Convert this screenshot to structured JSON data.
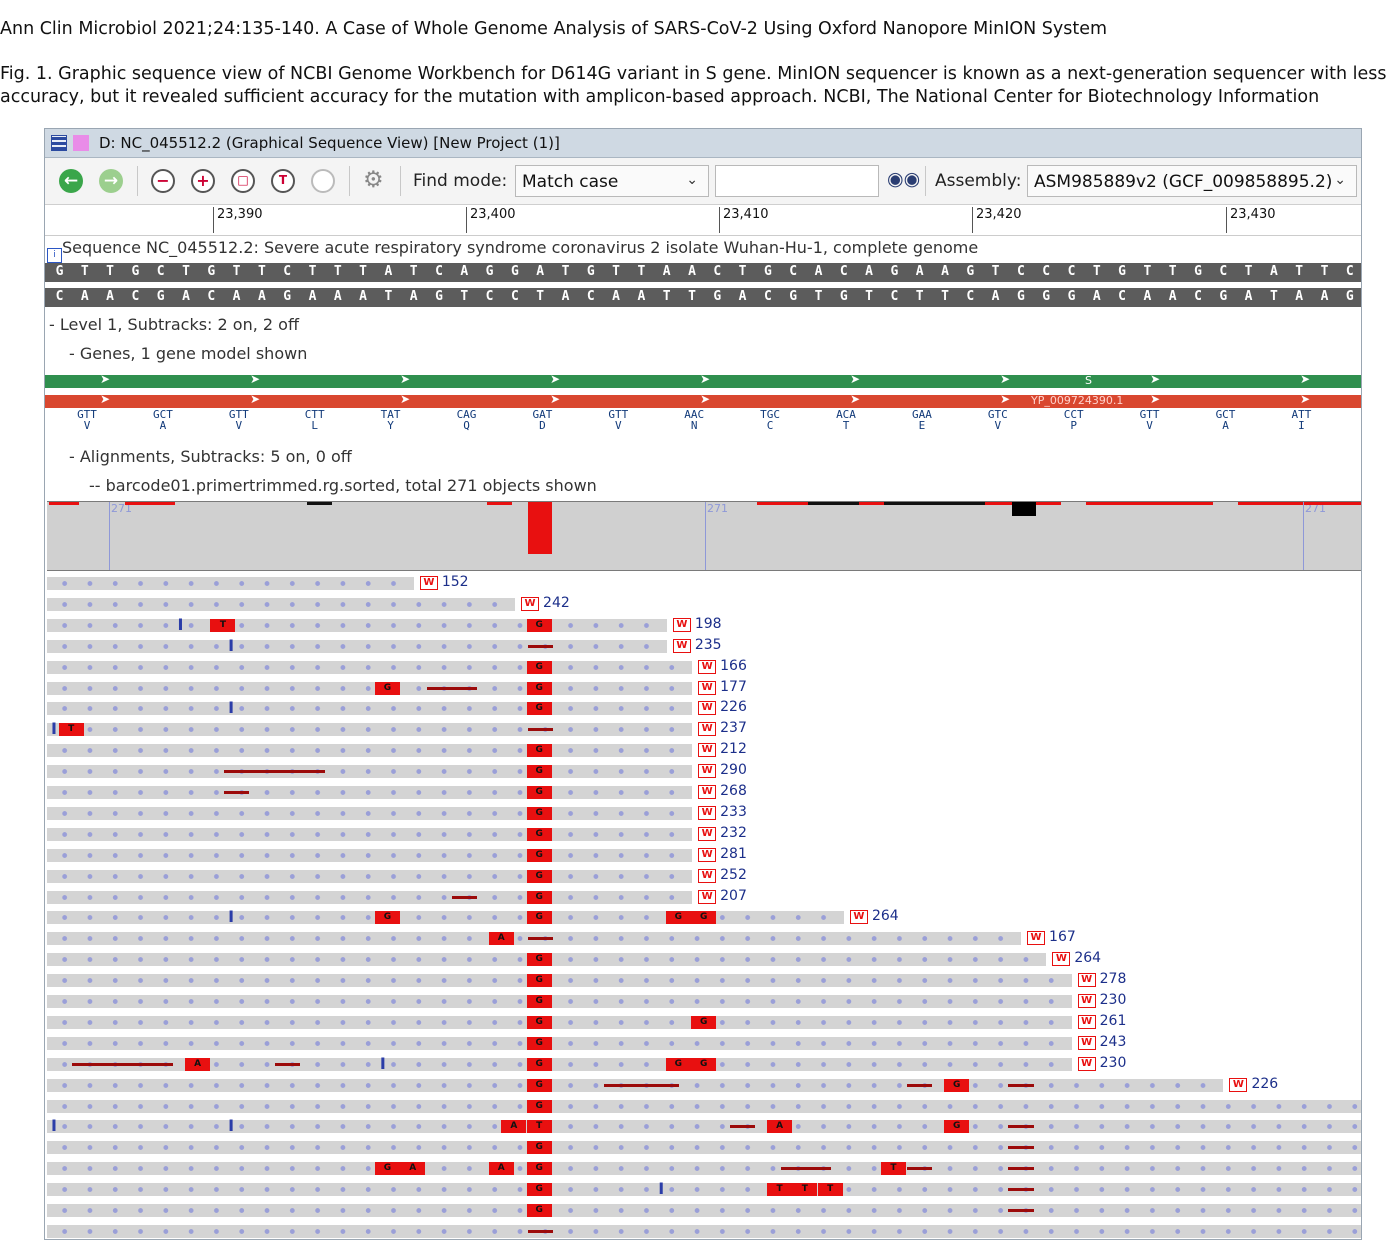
{
  "caption": {
    "citation": "Ann Clin Microbiol 2021;24:135-140. A Case of Whole Genome Analysis of SARS-CoV-2 Using Oxford Nanopore MinION System",
    "figure_line1": "Fig. 1. Graphic sequence view of NCBI Genome Workbench for D614G variant in S gene. MinION sequencer is known as a next-generation sequencer with less",
    "figure_line2": "accuracy, but it revealed sufficient accuracy for the mutation with amplicon-based approach. NCBI, The National Center for Biotechnology Information"
  },
  "window": {
    "title": "D: NC_045512.2 (Graphical Sequence View) [New Project (1)]"
  },
  "toolbar": {
    "icons": [
      "back-icon",
      "forward-icon",
      "zoom-out-icon",
      "zoom-in-icon",
      "zoom-region-icon",
      "zoom-text-icon",
      "zoom-reset-icon",
      "settings-icon",
      "binoculars-icon"
    ],
    "find_mode_label": "Find mode:",
    "find_mode_value": "Match case",
    "search_value": "",
    "assembly_label": "Assembly:",
    "assembly_value": "ASM985889v2 (GCF_009858895.2)"
  },
  "ruler": {
    "ticks": [
      "23,390",
      "23,400",
      "23,410",
      "23,420",
      "23,430"
    ]
  },
  "sequence_track": {
    "title": "Sequence NC_045512.2: Severe acute respiratory syndrome coronavirus 2 isolate Wuhan-Hu-1, complete genome",
    "forward": "GTTGCTGTTCTTTATCAGGATGTTAACTGCACAGAAGTCCCTGTTGCTATTC",
    "reverse": "CAACGACAAGAAATAGTCCTACAATTGACGTGTCTTCAGGGACAACGATAAG"
  },
  "level_label": "- Level 1, Subtracks: 2 on, 2 off",
  "genes_label": "- Genes, 1 gene model shown",
  "gene": {
    "label_s": "S",
    "protein_id": "YP_009724390.1"
  },
  "codons": [
    {
      "c": "GTT",
      "a": "V"
    },
    {
      "c": "GCT",
      "a": "A"
    },
    {
      "c": "GTT",
      "a": "V"
    },
    {
      "c": "CTT",
      "a": "L"
    },
    {
      "c": "TAT",
      "a": "Y"
    },
    {
      "c": "CAG",
      "a": "Q"
    },
    {
      "c": "GAT",
      "a": "D"
    },
    {
      "c": "GTT",
      "a": "V"
    },
    {
      "c": "AAC",
      "a": "N"
    },
    {
      "c": "TGC",
      "a": "C"
    },
    {
      "c": "ACA",
      "a": "T"
    },
    {
      "c": "GAA",
      "a": "E"
    },
    {
      "c": "GTC",
      "a": "V"
    },
    {
      "c": "CCT",
      "a": "P"
    },
    {
      "c": "GTT",
      "a": "V"
    },
    {
      "c": "GCT",
      "a": "A"
    },
    {
      "c": "ATT",
      "a": "I"
    }
  ],
  "alignments_label": "- Alignments, Subtracks: 5 on, 0 off",
  "barcode_label": "-- barcode01.primertrimmed.rg.sorted, total 271 objects shown",
  "coverage": {
    "max_labels": [
      "271",
      "271",
      "271"
    ]
  },
  "reads": [
    {
      "num": "152",
      "end": 14.5,
      "mm": [],
      "gaps": [],
      "ins": []
    },
    {
      "num": "242",
      "end": 18.5,
      "mm": [],
      "gaps": [],
      "ins": []
    },
    {
      "num": "198",
      "end": 24.5,
      "mm": [
        [
          6.5,
          "T"
        ],
        [
          19,
          "G"
        ]
      ],
      "gaps": [],
      "ins": [
        5
      ]
    },
    {
      "num": "235",
      "end": 24.5,
      "mm": [],
      "gaps": [
        [
          19,
          20
        ]
      ],
      "ins": [
        7
      ]
    },
    {
      "num": "166",
      "end": 25.5,
      "mm": [
        [
          19,
          "G"
        ]
      ],
      "gaps": [],
      "ins": []
    },
    {
      "num": "177",
      "end": 25.5,
      "mm": [
        [
          13,
          "G"
        ],
        [
          19,
          "G"
        ]
      ],
      "gaps": [
        [
          15,
          17
        ]
      ],
      "ins": []
    },
    {
      "num": "226",
      "end": 25.5,
      "mm": [
        [
          19,
          "G"
        ]
      ],
      "gaps": [],
      "ins": [
        7
      ]
    },
    {
      "num": "237",
      "end": 25.5,
      "mm": [
        [
          0.5,
          "T"
        ]
      ],
      "gaps": [
        [
          19,
          20
        ]
      ],
      "ins": [
        0
      ]
    },
    {
      "num": "212",
      "end": 25.5,
      "mm": [
        [
          19,
          "G"
        ]
      ],
      "gaps": [],
      "ins": []
    },
    {
      "num": "290",
      "end": 25.5,
      "mm": [
        [
          19,
          "G"
        ]
      ],
      "gaps": [
        [
          7,
          11
        ]
      ],
      "ins": []
    },
    {
      "num": "268",
      "end": 25.5,
      "mm": [
        [
          19,
          "G"
        ]
      ],
      "gaps": [
        [
          7,
          8
        ]
      ],
      "ins": []
    },
    {
      "num": "233",
      "end": 25.5,
      "mm": [
        [
          19,
          "G"
        ]
      ],
      "gaps": [],
      "ins": []
    },
    {
      "num": "232",
      "end": 25.5,
      "mm": [
        [
          19,
          "G"
        ]
      ],
      "gaps": [],
      "ins": []
    },
    {
      "num": "281",
      "end": 25.5,
      "mm": [
        [
          19,
          "G"
        ]
      ],
      "gaps": [],
      "ins": []
    },
    {
      "num": "252",
      "end": 25.5,
      "mm": [
        [
          19,
          "G"
        ]
      ],
      "gaps": [],
      "ins": []
    },
    {
      "num": "207",
      "end": 25.5,
      "mm": [
        [
          19,
          "G"
        ]
      ],
      "gaps": [
        [
          16,
          17
        ]
      ],
      "ins": []
    },
    {
      "num": "264",
      "end": 31.5,
      "mm": [
        [
          13,
          "G"
        ],
        [
          19,
          "G"
        ],
        [
          24.5,
          "G"
        ],
        [
          25.5,
          "G"
        ]
      ],
      "gaps": [],
      "ins": [
        7
      ]
    },
    {
      "num": "167",
      "end": 38.5,
      "mm": [
        [
          17.5,
          "A"
        ]
      ],
      "gaps": [
        [
          19,
          20
        ]
      ],
      "ins": []
    },
    {
      "num": "264",
      "end": 39.5,
      "mm": [
        [
          19,
          "G"
        ]
      ],
      "gaps": [],
      "ins": []
    },
    {
      "num": "278",
      "end": 40.5,
      "mm": [
        [
          19,
          "G"
        ]
      ],
      "gaps": [],
      "ins": []
    },
    {
      "num": "230",
      "end": 40.5,
      "mm": [
        [
          19,
          "G"
        ]
      ],
      "gaps": [],
      "ins": []
    },
    {
      "num": "261",
      "end": 40.5,
      "mm": [
        [
          19,
          "G"
        ],
        [
          25.5,
          "G"
        ]
      ],
      "gaps": [],
      "ins": []
    },
    {
      "num": "243",
      "end": 40.5,
      "mm": [
        [
          19,
          "G"
        ]
      ],
      "gaps": [],
      "ins": []
    },
    {
      "num": "230",
      "end": 40.5,
      "mm": [
        [
          5.5,
          "A"
        ],
        [
          19,
          "G"
        ],
        [
          24.5,
          "G"
        ],
        [
          25.5,
          "G"
        ]
      ],
      "gaps": [
        [
          1,
          5
        ],
        [
          9,
          10
        ]
      ],
      "ins": [
        13
      ]
    },
    {
      "num": "226",
      "end": 46.5,
      "mm": [
        [
          19,
          "G"
        ],
        [
          35.5,
          "G"
        ]
      ],
      "gaps": [
        [
          22,
          25
        ],
        [
          34,
          35
        ],
        [
          38,
          39
        ]
      ],
      "ins": []
    },
    {
      "num": "",
      "end": 52,
      "mm": [
        [
          19,
          "G"
        ]
      ],
      "gaps": [],
      "ins": []
    },
    {
      "num": "",
      "end": 52,
      "mm": [
        [
          18,
          "A"
        ],
        [
          19,
          "T"
        ],
        [
          28.5,
          "A"
        ],
        [
          35.5,
          "G"
        ]
      ],
      "gaps": [
        [
          27,
          28
        ],
        [
          38,
          39
        ]
      ],
      "ins": [
        0,
        7
      ]
    },
    {
      "num": "",
      "end": 52,
      "mm": [
        [
          19,
          "G"
        ]
      ],
      "gaps": [
        [
          38,
          39
        ]
      ],
      "ins": []
    },
    {
      "num": "",
      "end": 52,
      "mm": [
        [
          13,
          "G"
        ],
        [
          14,
          "A"
        ],
        [
          17.5,
          "A"
        ],
        [
          19,
          "G"
        ],
        [
          33,
          "T"
        ]
      ],
      "gaps": [
        [
          29,
          31
        ],
        [
          34,
          35
        ],
        [
          38,
          39
        ]
      ],
      "ins": []
    },
    {
      "num": "",
      "end": 52,
      "mm": [
        [
          19,
          "G"
        ],
        [
          28.5,
          "T"
        ],
        [
          29.5,
          "T"
        ],
        [
          30.5,
          "T"
        ]
      ],
      "gaps": [
        [
          38,
          39
        ]
      ],
      "ins": [
        24
      ]
    },
    {
      "num": "",
      "end": 52,
      "mm": [
        [
          19,
          "G"
        ]
      ],
      "gaps": [
        [
          38,
          39
        ]
      ],
      "ins": []
    },
    {
      "num": "",
      "end": 52,
      "mm": [],
      "gaps": [
        [
          19,
          20
        ]
      ],
      "ins": []
    }
  ],
  "colors": {
    "mismatch": "#e81010",
    "gene_green": "#2f8f4e",
    "gene_red": "#d9472f",
    "sequence_bar": "#5c5c5c",
    "read_body": "#d4d4d4",
    "coverage_bg": "#d0d0d0"
  }
}
